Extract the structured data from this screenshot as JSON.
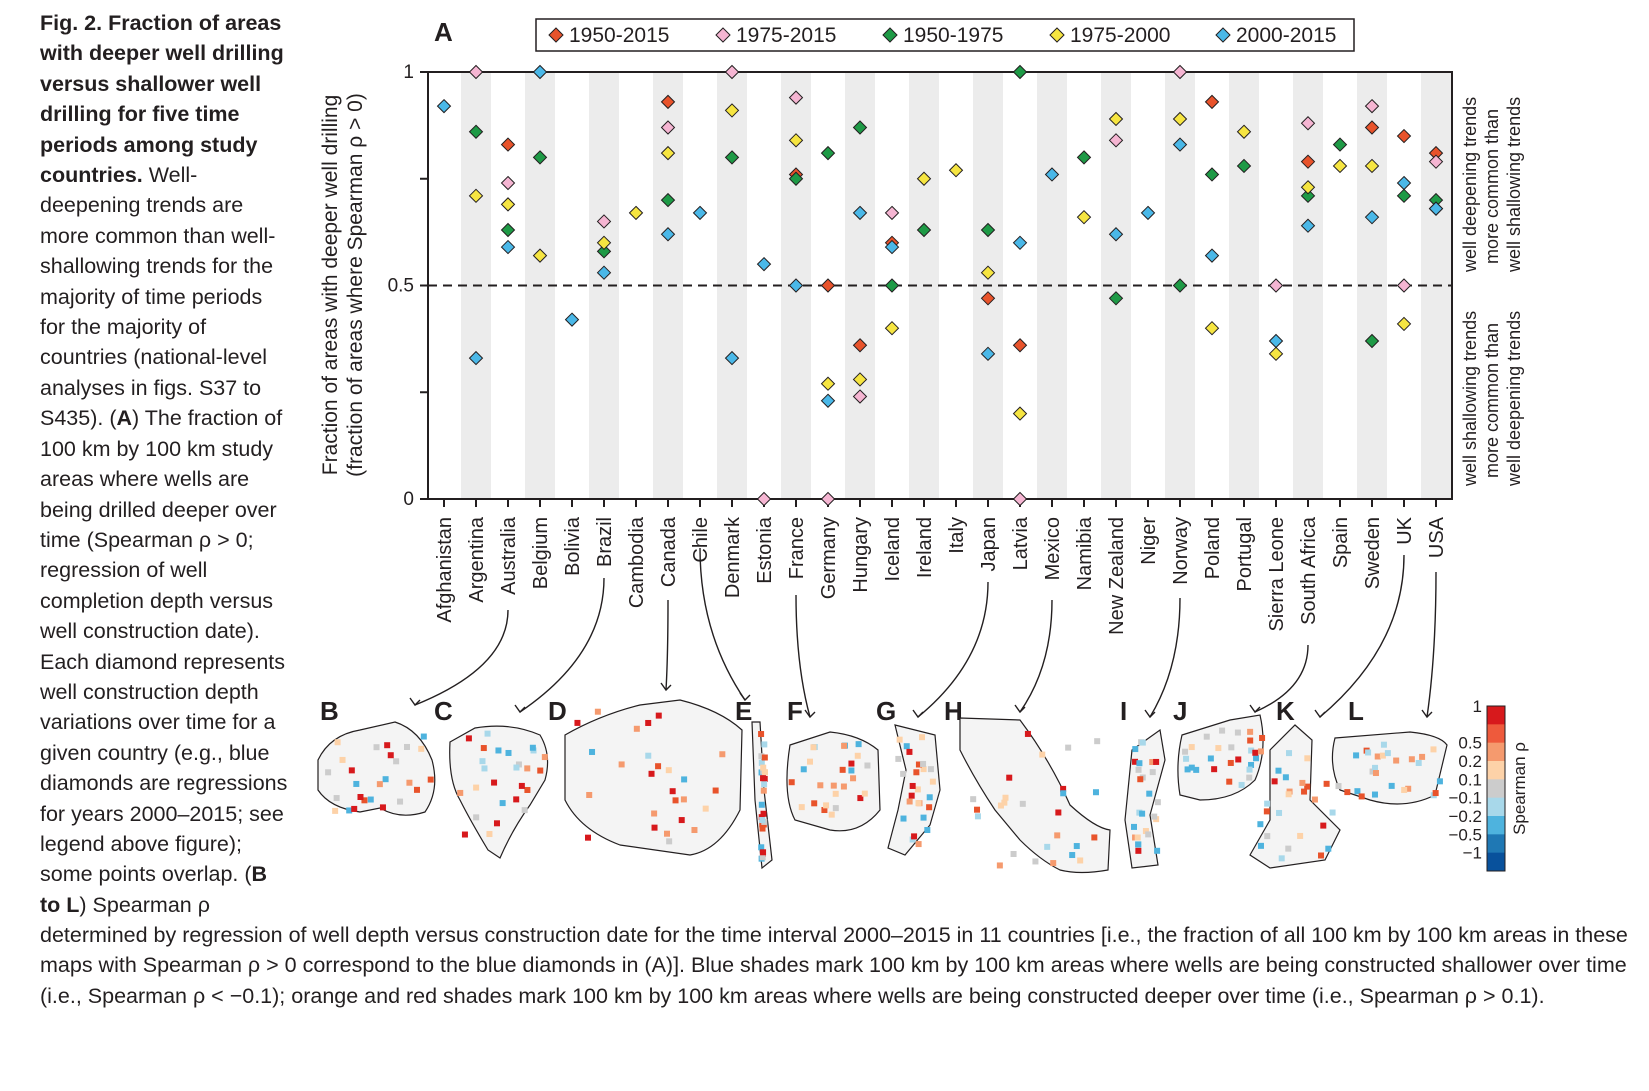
{
  "caption": {
    "title": "Fig. 2. Fraction of areas with deeper well drilling versus shallower well drilling for five time periods among study countries.",
    "side_text_1": "Well-deepening trends are more common than well-shallowing trends for the majority of time periods for the majority of countries (national-level analyses in figs. S37 to S435).",
    "panel_a_letter": "A",
    "side_text_2": "The fraction of 100 km by 100 km study areas where wells are being drilled deeper over time (Spearman ρ > 0; regression of well completion depth versus well construction date). Each diamond represents well construction depth variations over time for a given country (e.g., blue diamonds are regressions for years 2000–2015; see legend above figure); some points overlap.",
    "panel_bl_letters": "B to L",
    "side_text_3": "Spearman ρ",
    "bottom_text": "determined by regression of well depth versus construction date for the time interval 2000–2015 in 11 countries [i.e., the fraction of all 100 km by 100 km areas in these maps with Spearman ρ > 0 correspond to the blue diamonds in (A)]. Blue shades mark 100 km by 100 km areas where wells are being constructed shallower over time (i.e., Spearman ρ < −0.1); orange and red shades mark 100 km by 100 km areas where wells are being constructed deeper over time (i.e., Spearman ρ > 0.1)."
  },
  "panel_letters": [
    "A",
    "B",
    "C",
    "D",
    "E",
    "F",
    "G",
    "H",
    "I",
    "J",
    "K",
    "L"
  ],
  "map_panels": [
    {
      "letter": "B",
      "country": "Australia"
    },
    {
      "letter": "C",
      "country": "Brazil"
    },
    {
      "letter": "D",
      "country": "Canada"
    },
    {
      "letter": "E",
      "country": "Chile"
    },
    {
      "letter": "F",
      "country": "France"
    },
    {
      "letter": "G",
      "country": "Japan"
    },
    {
      "letter": "H",
      "country": "Mexico"
    },
    {
      "letter": "I",
      "country": "Norway"
    },
    {
      "letter": "J",
      "country": "South Africa"
    },
    {
      "letter": "K",
      "country": "UK"
    },
    {
      "letter": "L",
      "country": "USA"
    }
  ],
  "right_notes": {
    "upper": [
      "well deepening trends",
      "more common than",
      "well shallowing trends"
    ],
    "lower": [
      "well shallowing trends",
      "more common than",
      "well deepening trends"
    ]
  },
  "colorbar": {
    "title": "Spearman ρ",
    "labels": [
      "1",
      "0.5",
      "0.2",
      "0.1",
      "−0.1",
      "−0.2",
      "−0.5",
      "−1"
    ],
    "colors": [
      "#d7191c",
      "#ee5a3c",
      "#f59a6e",
      "#fdd2a8",
      "#cccccc",
      "#a8d8ea",
      "#4eb3de",
      "#1f78b4",
      "#08519c"
    ]
  },
  "chart_data": {
    "type": "scatter",
    "ylabel_lines": [
      "Fraction of areas with deeper well drilling",
      "(fraction of areas where Spearman ρ > 0)"
    ],
    "ylim": [
      0,
      1
    ],
    "yticks": [
      "0",
      "0.5",
      "1"
    ],
    "reference_line": 0.5,
    "legend_placement": "top",
    "categories": [
      "Afghanistan",
      "Argentina",
      "Australia",
      "Belgium",
      "Bolivia",
      "Brazil",
      "Cambodia",
      "Canada",
      "Chile",
      "Denmark",
      "Estonia",
      "France",
      "Germany",
      "Hungary",
      "Iceland",
      "Ireland",
      "Italy",
      "Japan",
      "Latvia",
      "Mexico",
      "Namibia",
      "New Zealand",
      "Niger",
      "Norway",
      "Poland",
      "Portugal",
      "Sierra Leone",
      "South Africa",
      "Spain",
      "Sweden",
      "UK",
      "USA"
    ],
    "series": [
      {
        "name": "1950-2015",
        "color": "#e8532b",
        "values": [
          null,
          null,
          0.83,
          null,
          null,
          null,
          null,
          0.93,
          null,
          null,
          null,
          0.76,
          0.5,
          0.36,
          0.6,
          null,
          null,
          0.47,
          0.36,
          null,
          null,
          null,
          null,
          null,
          0.93,
          null,
          null,
          0.79,
          null,
          0.87,
          0.85,
          0.81
        ]
      },
      {
        "name": "1975-2015",
        "color": "#f5b5d2",
        "values": [
          null,
          1.0,
          0.74,
          null,
          null,
          0.65,
          null,
          0.87,
          null,
          1.0,
          0.0,
          0.94,
          0.0,
          0.24,
          0.67,
          null,
          null,
          null,
          0.0,
          null,
          null,
          0.84,
          null,
          1.0,
          null,
          null,
          0.5,
          0.88,
          null,
          0.92,
          0.5,
          0.79
        ]
      },
      {
        "name": "1950-1975",
        "color": "#1e9a46",
        "values": [
          null,
          0.86,
          0.63,
          0.8,
          null,
          0.58,
          null,
          0.7,
          null,
          0.8,
          null,
          0.75,
          0.81,
          0.87,
          0.5,
          0.63,
          null,
          0.63,
          1.0,
          null,
          0.8,
          0.47,
          null,
          0.5,
          0.76,
          0.78,
          null,
          0.71,
          0.83,
          0.37,
          0.71,
          0.7
        ]
      },
      {
        "name": "1975-2000",
        "color": "#f6e541",
        "values": [
          null,
          0.71,
          0.69,
          0.57,
          null,
          0.6,
          0.67,
          0.81,
          null,
          0.91,
          null,
          0.84,
          0.27,
          0.28,
          0.4,
          0.75,
          0.77,
          0.53,
          0.2,
          null,
          0.66,
          0.89,
          null,
          0.89,
          0.4,
          0.86,
          0.34,
          0.73,
          0.78,
          0.78,
          0.41,
          0.68
        ]
      },
      {
        "name": "2000-2015",
        "color": "#4ab8e8",
        "values": [
          0.92,
          0.33,
          0.59,
          1.0,
          0.42,
          0.53,
          null,
          0.62,
          0.67,
          0.33,
          0.55,
          0.5,
          0.23,
          0.67,
          0.59,
          null,
          null,
          0.34,
          0.6,
          0.76,
          null,
          0.62,
          0.67,
          0.83,
          0.57,
          null,
          0.37,
          0.64,
          null,
          0.66,
          0.74,
          0.68
        ]
      }
    ]
  }
}
